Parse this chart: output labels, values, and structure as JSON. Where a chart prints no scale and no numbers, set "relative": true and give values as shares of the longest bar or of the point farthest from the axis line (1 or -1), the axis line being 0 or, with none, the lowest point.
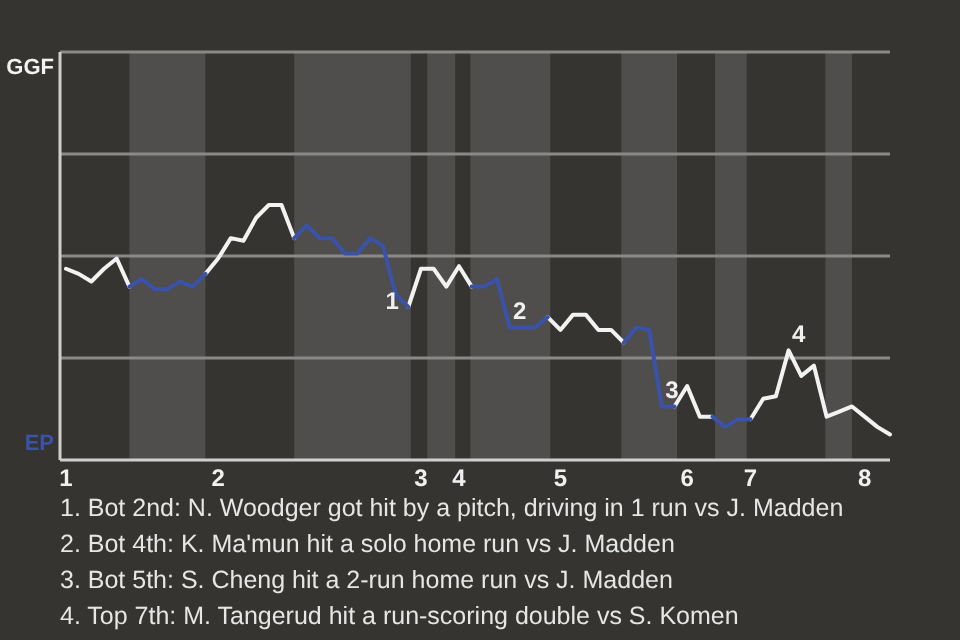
{
  "chart_data": {
    "type": "line",
    "relative": true,
    "categories": [
      "1",
      null,
      null,
      null,
      null,
      null,
      null,
      null,
      null,
      null,
      null,
      null,
      "2",
      null,
      null,
      null,
      null,
      null,
      null,
      null,
      null,
      null,
      null,
      null,
      null,
      null,
      null,
      null,
      "3",
      null,
      null,
      "4",
      null,
      null,
      null,
      null,
      null,
      null,
      null,
      "5",
      null,
      null,
      null,
      null,
      null,
      null,
      null,
      null,
      null,
      "6",
      null,
      null,
      null,
      null,
      "7",
      null,
      null,
      null,
      null,
      null,
      null,
      null,
      null,
      "8",
      null,
      null
    ],
    "series": [
      {
        "name": "GGF",
        "color": "#f2f2f2",
        "values": [
          0.75,
          0.73,
          0.7,
          0.75,
          0.79,
          0.68,
          null,
          null,
          null,
          null,
          null,
          0.73,
          0.79,
          0.87,
          0.86,
          0.95,
          1,
          1,
          0.87,
          null,
          null,
          null,
          null,
          null,
          null,
          null,
          null,
          0.6,
          0.75,
          0.75,
          0.68,
          0.76,
          0.68,
          null,
          null,
          null,
          null,
          null,
          0.56,
          0.51,
          0.57,
          0.57,
          0.51,
          0.51,
          0.46,
          null,
          null,
          null,
          0.21,
          0.29,
          0.17,
          0.17,
          null,
          null,
          0.16,
          0.24,
          0.25,
          0.43,
          0.33,
          0.37,
          0.17,
          0.19,
          0.21,
          0.17,
          0.13,
          0.1
        ]
      },
      {
        "name": "EP",
        "color": "#3a52a8",
        "values": [
          null,
          null,
          null,
          null,
          null,
          0.68,
          0.71,
          0.67,
          0.67,
          0.7,
          0.68,
          0.73,
          null,
          null,
          null,
          null,
          null,
          null,
          0.87,
          0.92,
          0.87,
          0.87,
          0.81,
          0.81,
          0.87,
          0.84,
          0.65,
          0.6,
          null,
          null,
          null,
          null,
          0.68,
          0.68,
          0.71,
          0.52,
          0.52,
          0.52,
          0.56,
          null,
          null,
          null,
          null,
          null,
          0.46,
          0.52,
          0.51,
          0.21,
          0.21,
          null,
          null,
          0.17,
          0.13,
          0.16,
          0.16,
          null,
          null,
          null,
          null,
          null,
          null,
          null,
          null,
          null,
          null,
          null
        ]
      }
    ],
    "ref_lines": [
      {
        "axis": "y",
        "value": 0.4,
        "color": "#8a8987"
      },
      {
        "axis": "y",
        "value": 0.8,
        "color": "#8a8987"
      },
      {
        "axis": "y",
        "value": 1.2,
        "color": "#8a8987"
      }
    ],
    "legend": "left",
    "annotations": [
      {
        "text": "1",
        "y": 0.6
      },
      {
        "text": "2",
        "y": 0.52
      },
      {
        "text": "3",
        "y": 0.21
      },
      {
        "text": "4",
        "y": 0.43
      },
      "1. Bot 2nd: N. Woodger got hit by a pitch, driving in 1 run vs J. Madden",
      "2. Bot 4th: K. Ma'mun hit a solo home run vs J. Madden",
      "3. Bot 5th: S. Cheng hit a 2-run home run vs J. Madden",
      "4. Top 7th: M. Tangerud hit a run-scoring double vs S. Komen"
    ],
    "marker": "none",
    "line_style": "solid"
  }
}
